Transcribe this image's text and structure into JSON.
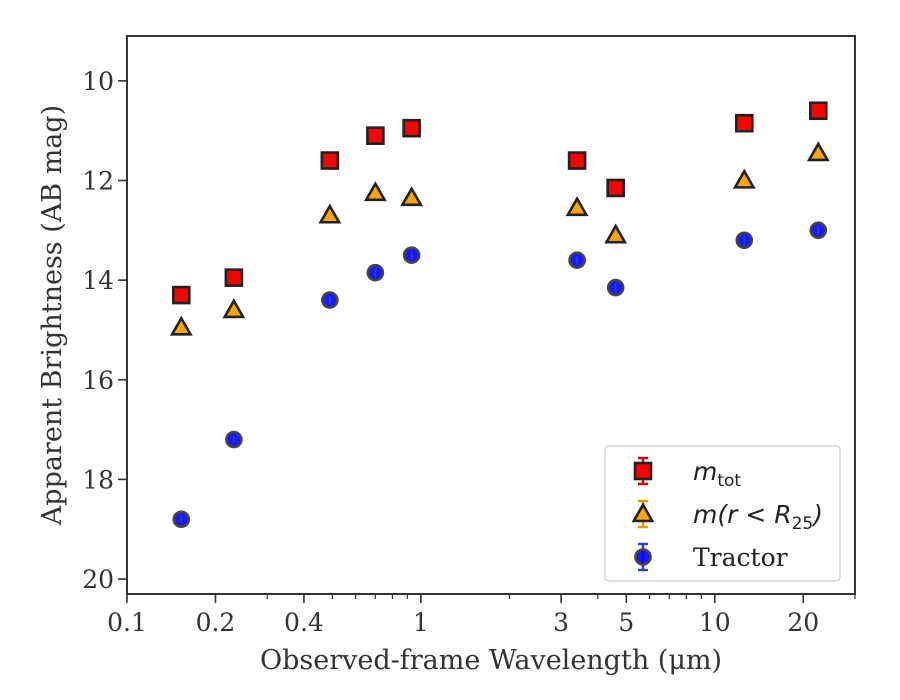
{
  "chart_data": {
    "type": "scatter",
    "title": "",
    "xlabel": "Observed-frame Wavelength (μm)",
    "ylabel": "Apparent Brightness (AB mag)",
    "xscale": "log",
    "xlim": [
      0.1,
      30
    ],
    "ylim": [
      20.3,
      9.1
    ],
    "y_inverted": true,
    "grid": false,
    "legend_position": "lower-right",
    "x_ticks": [
      {
        "value": 0.1,
        "label": "0.1"
      },
      {
        "value": 0.2,
        "label": "0.2"
      },
      {
        "value": 0.4,
        "label": "0.4"
      },
      {
        "value": 1,
        "label": "1"
      },
      {
        "value": 3,
        "label": "3"
      },
      {
        "value": 5,
        "label": "5"
      },
      {
        "value": 10,
        "label": "10"
      },
      {
        "value": 20,
        "label": "20"
      }
    ],
    "y_ticks": [
      {
        "value": 10,
        "label": "10"
      },
      {
        "value": 12,
        "label": "12"
      },
      {
        "value": 14,
        "label": "14"
      },
      {
        "value": 16,
        "label": "16"
      },
      {
        "value": 18,
        "label": "18"
      },
      {
        "value": 20,
        "label": "20"
      }
    ],
    "series": [
      {
        "name": "m_tot",
        "legend_label": {
          "main": "m",
          "sub": "tot"
        },
        "marker": "square",
        "fill": "#ff0000",
        "edge": "#222222",
        "errorbar_color": "#cc0000",
        "x": [
          0.153,
          0.231,
          0.49,
          0.7,
          0.93,
          3.4,
          4.6,
          12.6,
          22.5
        ],
        "y": [
          14.3,
          13.95,
          11.6,
          11.1,
          10.95,
          11.6,
          12.15,
          10.85,
          10.6
        ]
      },
      {
        "name": "m(r<R25)",
        "legend_label": {
          "main": "m(r < R",
          "sub": "25",
          "tail": ")"
        },
        "marker": "triangle",
        "fill": "#ffa500",
        "edge": "#222222",
        "errorbar_color": "#e69a00",
        "x": [
          0.153,
          0.231,
          0.49,
          0.7,
          0.93,
          3.4,
          4.6,
          12.6,
          22.5
        ],
        "y": [
          14.95,
          14.6,
          12.7,
          12.25,
          12.35,
          12.55,
          13.1,
          12.0,
          11.45
        ]
      },
      {
        "name": "Tractor",
        "legend_label": {
          "main": "Tractor"
        },
        "marker": "circle",
        "fill": "#0000ff",
        "edge": "#444444",
        "errorbar_color": "#2244cc",
        "x": [
          0.153,
          0.231,
          0.49,
          0.7,
          0.93,
          3.4,
          4.6,
          12.6,
          22.5
        ],
        "y": [
          18.8,
          17.2,
          14.4,
          13.85,
          13.5,
          13.6,
          14.15,
          13.2,
          13.0
        ]
      }
    ]
  }
}
